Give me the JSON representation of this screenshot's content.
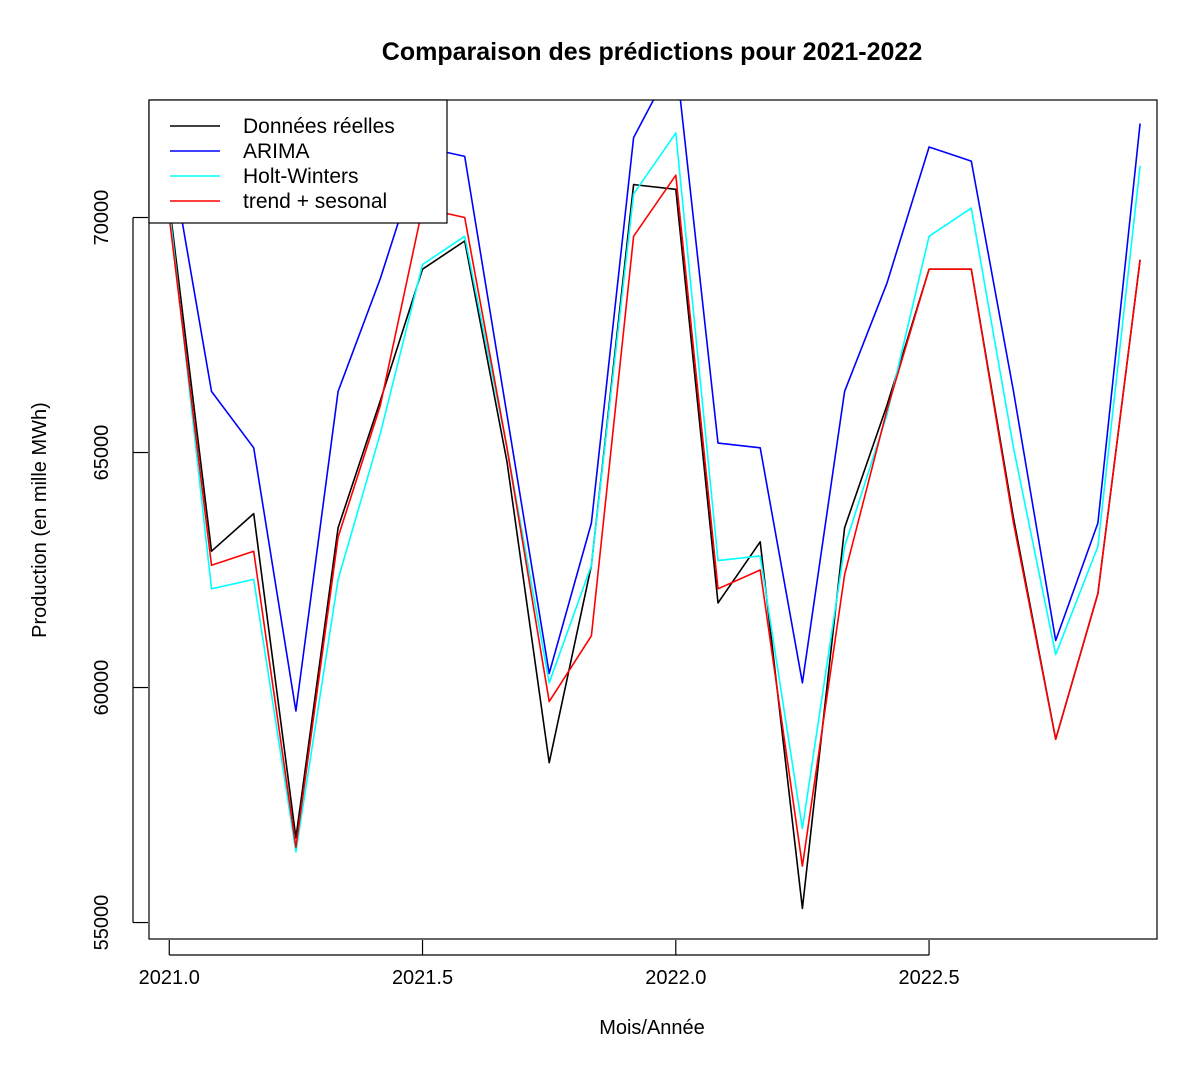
{
  "chart_data": {
    "type": "line",
    "title": "Comparaison des prédictions pour 2021-2022",
    "xlabel": "Mois/Année",
    "ylabel": "Production (en mille MWh)",
    "xlim": [
      2020.96,
      2022.95
    ],
    "ylim": [
      54650,
      72500
    ],
    "x_ticks": [
      2021.0,
      2021.5,
      2022.0,
      2022.5
    ],
    "x_tick_labels": [
      "2021.0",
      "2021.5",
      "2022.0",
      "2022.5"
    ],
    "y_ticks": [
      55000,
      60000,
      65000,
      70000
    ],
    "y_tick_labels": [
      "55000",
      "60000",
      "65000",
      "70000"
    ],
    "grid": false,
    "legend_position": "top-left",
    "x": [
      2021.0,
      2021.0833,
      2021.1667,
      2021.25,
      2021.3333,
      2021.4167,
      2021.5,
      2021.5833,
      2021.6667,
      2021.75,
      2021.8333,
      2021.9167,
      2022.0,
      2022.0833,
      2022.1667,
      2022.25,
      2022.3333,
      2022.4167,
      2022.5,
      2022.5833,
      2022.6667,
      2022.75,
      2022.8333,
      2022.9167
    ],
    "series": [
      {
        "name": "Données réelles",
        "color": "#000000",
        "values": [
          70300,
          62900,
          63700,
          56800,
          63400,
          66100,
          68900,
          69500,
          64800,
          58400,
          62600,
          70700,
          70600,
          61800,
          63100,
          55300,
          63400,
          66000,
          68900,
          68900,
          63600,
          58900,
          62000,
          69100
        ]
      },
      {
        "name": "ARIMA",
        "color": "#0000ff",
        "values": [
          71500,
          66300,
          65100,
          59500,
          66300,
          68700,
          71500,
          71300,
          65800,
          60300,
          63500,
          71700,
          73400,
          65200,
          65100,
          60100,
          66300,
          68600,
          71500,
          71200,
          66300,
          61000,
          63500,
          72000
        ]
      },
      {
        "name": "Holt-Winters",
        "color": "#00ffff",
        "values": [
          70200,
          62100,
          62300,
          56500,
          62300,
          65400,
          69000,
          69600,
          65100,
          60100,
          62600,
          70500,
          71800,
          62700,
          62800,
          57000,
          63000,
          65800,
          69600,
          70200,
          65100,
          60700,
          63000,
          71100
        ]
      },
      {
        "name": "trend + sesonal",
        "color": "#ff0000",
        "values": [
          70000,
          62600,
          62900,
          56600,
          63200,
          66000,
          70200,
          70000,
          65100,
          59700,
          61100,
          69600,
          70900,
          62100,
          62500,
          56200,
          62400,
          65900,
          68900,
          68900,
          63500,
          58900,
          62000,
          69100
        ]
      }
    ]
  }
}
